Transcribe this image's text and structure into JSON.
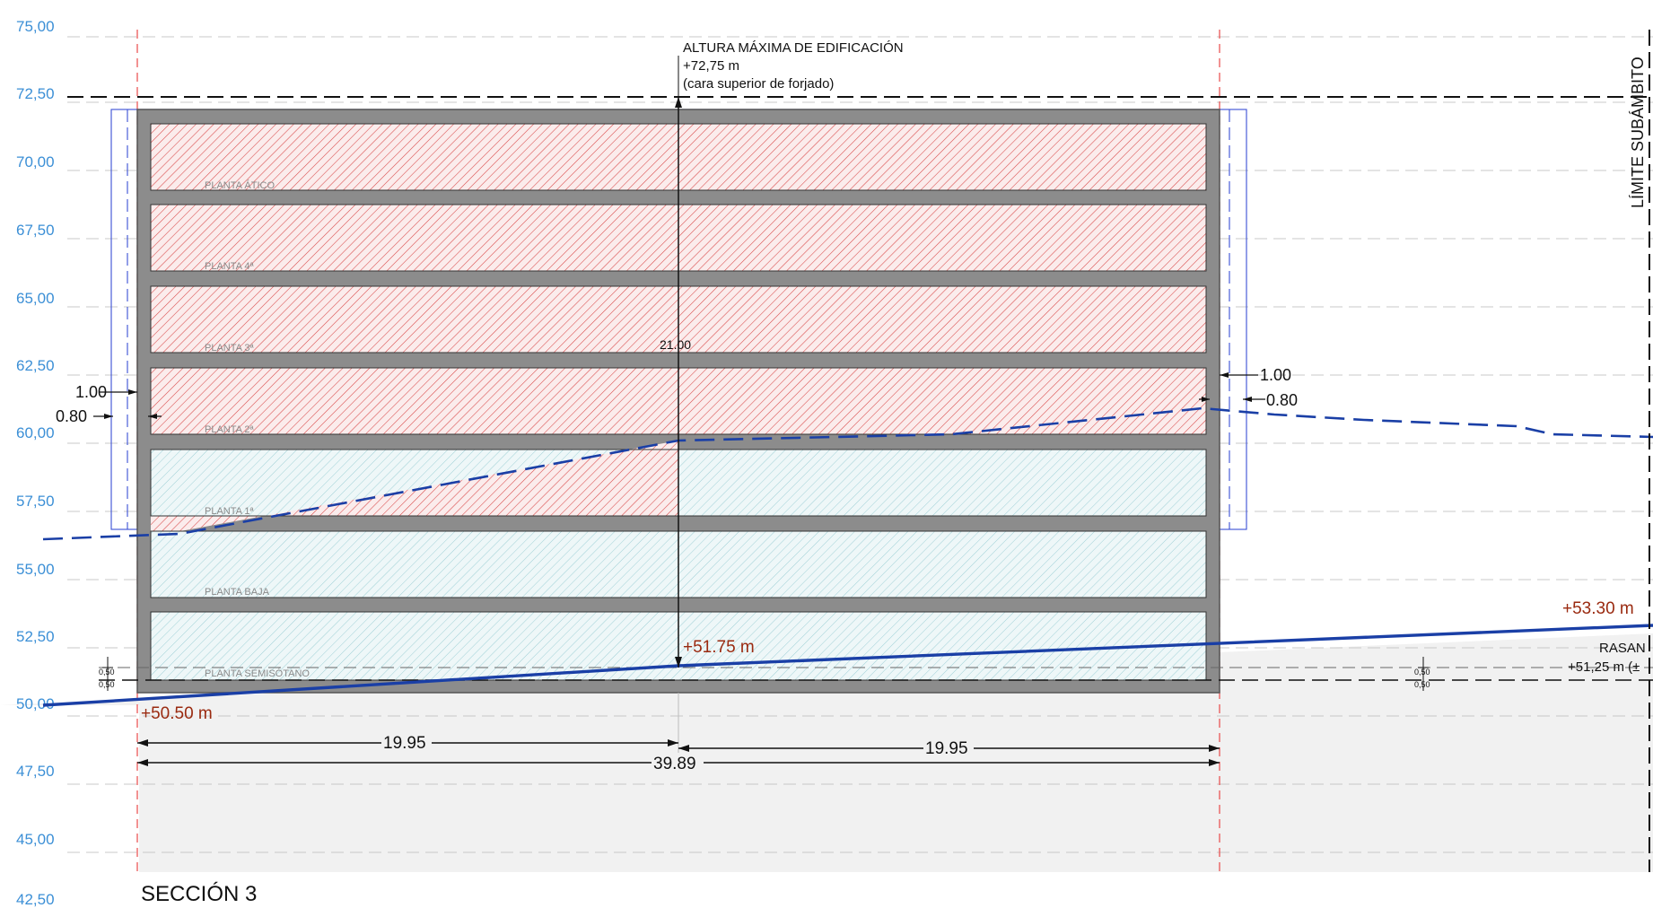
{
  "levels": [
    "75,00",
    "72,50",
    "70,00",
    "67,50",
    "65,00",
    "62,50",
    "60,00",
    "57,50",
    "55,00",
    "52,50",
    "50,00",
    "47,50",
    "45,00",
    "42,50"
  ],
  "max_height": {
    "title": "ALTURA MÁXIMA DE EDIFICACIÓN",
    "value": "+72,75 m",
    "note": "(cara superior de forjado)"
  },
  "limit_label": "LÍMITE SUBÁMBITO",
  "floors": [
    "PLANTA ÁTICO",
    "PLANTA 4ª",
    "PLANTA 3ª",
    "PLANTA 2ª",
    "PLANTA 1ª",
    "PLANTA BAJA",
    "PLANTA SEMISÓTANO"
  ],
  "dimensions": {
    "height": "21.00",
    "left_offset_1": "1.00",
    "left_offset_2": "0.80",
    "right_offset_1": "1.00",
    "right_offset_2": "0.80",
    "half_left": "19.95",
    "half_right": "19.95",
    "total_width": "39.89",
    "small_top": "0,50",
    "small_bottom": "0,50"
  },
  "elevations": {
    "left_ground": "+50.50 m",
    "center_ground": "+51.75 m",
    "right_ground": "+53.30 m"
  },
  "rasante": {
    "label": "RASAN",
    "value": "+51,25 m (±"
  },
  "section_title": "SECCIÓN 3",
  "colors": {
    "level_text": "#3b8fd6",
    "building": "#8c8c8c",
    "red_hatch": "#d94848",
    "blue_hatch": "#7fc4cc",
    "terrain_line": "#1a3fa6",
    "elevation_text": "#9a2a10"
  }
}
